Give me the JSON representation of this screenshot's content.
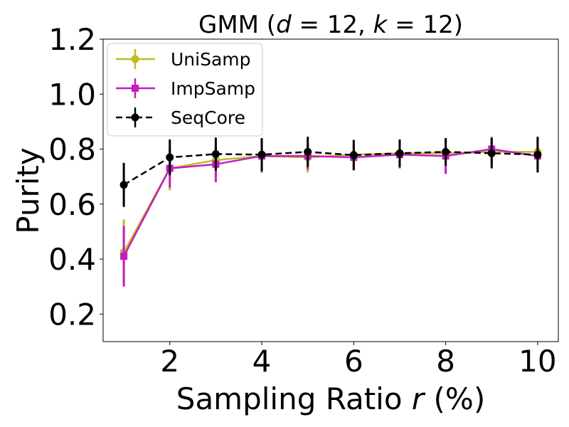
{
  "chart_data": {
    "type": "line",
    "title": "GMM ($d = 12, k = 12$)",
    "title_parts": {
      "prefix": "GMM (",
      "d_var": "d",
      "d_eq": " = 12, ",
      "k_var": "k",
      "k_eq": " = 12)"
    },
    "xlabel": "Sampling Ratio $r$ (%)",
    "xlabel_parts": {
      "prefix": "Sampling Ratio ",
      "var": "r",
      "suffix": " (%)"
    },
    "ylabel": "Purity",
    "xlim": [
      0.55,
      10.45
    ],
    "ylim": [
      0.1,
      1.2
    ],
    "xticks": [
      2,
      4,
      6,
      8,
      10
    ],
    "xtick_labels": [
      "2",
      "4",
      "6",
      "8",
      "10"
    ],
    "yticks": [
      0.2,
      0.4,
      0.6,
      0.8,
      1.0,
      1.2
    ],
    "ytick_labels": [
      "0.2",
      "0.4",
      "0.6",
      "0.8",
      "1.0",
      "1.2"
    ],
    "grid": false,
    "legend_position": "top-left",
    "x": [
      1,
      2,
      3,
      4,
      5,
      6,
      7,
      8,
      9,
      10
    ],
    "series": [
      {
        "name": "UniSamp",
        "color": "#bcbd22",
        "marker": "circle",
        "linestyle": "solid",
        "values": [
          0.425,
          0.73,
          0.76,
          0.775,
          0.77,
          0.78,
          0.785,
          0.785,
          0.79,
          0.79
        ],
        "errors": [
          0.12,
          0.08,
          0.06,
          0.06,
          0.055,
          0.055,
          0.05,
          0.05,
          0.05,
          0.05
        ]
      },
      {
        "name": "ImpSamp",
        "color": "#c51cbf",
        "marker": "square",
        "linestyle": "solid",
        "values": [
          0.41,
          0.73,
          0.745,
          0.775,
          0.775,
          0.77,
          0.78,
          0.775,
          0.8,
          0.775
        ],
        "errors": [
          0.11,
          0.07,
          0.065,
          0.06,
          0.05,
          0.045,
          0.05,
          0.065,
          0.045,
          0.05
        ]
      },
      {
        "name": "SeqCore",
        "color": "#000000",
        "marker": "circle",
        "linestyle": "dashed",
        "values": [
          0.67,
          0.77,
          0.782,
          0.78,
          0.79,
          0.778,
          0.785,
          0.79,
          0.785,
          0.78
        ],
        "errors": [
          0.08,
          0.065,
          0.06,
          0.06,
          0.055,
          0.055,
          0.05,
          0.05,
          0.055,
          0.065
        ]
      }
    ]
  }
}
